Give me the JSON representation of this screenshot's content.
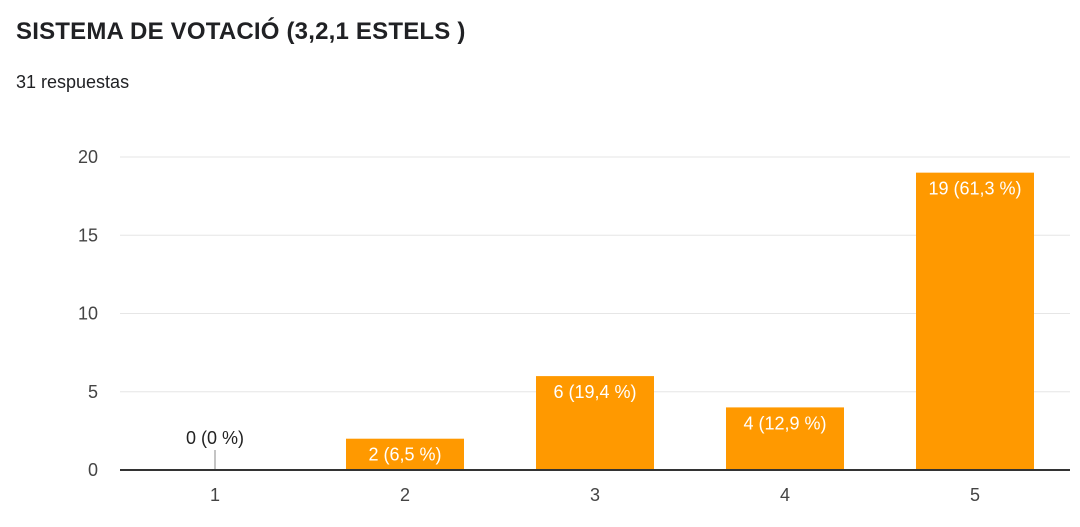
{
  "header": {
    "title": "SISTEMA DE VOTACIÓ (3,2,1 ESTELS )",
    "subtitle": "31 respuestas"
  },
  "colors": {
    "bar": "#ff9900",
    "grid": "#e6e6e6",
    "axis": "#333333",
    "label_inside": "#ffffff",
    "label_outside": "#222222"
  },
  "chart_data": {
    "type": "bar",
    "categories": [
      "1",
      "2",
      "3",
      "4",
      "5"
    ],
    "values": [
      0,
      2,
      6,
      4,
      19
    ],
    "data_labels": [
      "0 (0 %)",
      "2 (6,5 %)",
      "6 (19,4 %)",
      "4 (12,9 %)",
      "19 (61,3 %)"
    ],
    "y_ticks": [
      0,
      5,
      10,
      15,
      20
    ],
    "ylim": [
      0,
      20
    ],
    "grid": true,
    "legend": "none"
  }
}
